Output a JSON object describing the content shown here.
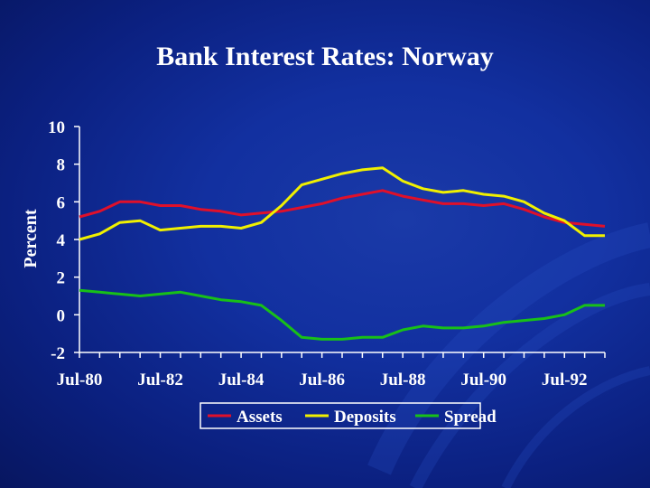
{
  "slide": {
    "title": "Bank Interest Rates: Norway"
  },
  "chart_data": {
    "type": "line",
    "title": "",
    "xlabel": "",
    "ylabel": "Percent",
    "ylim": [
      -2,
      10
    ],
    "yticks": [
      "10",
      "8",
      "6",
      "4",
      "2",
      "0",
      "-2"
    ],
    "xtick_labels": [
      "Jul-80",
      "Jul-82",
      "Jul-84",
      "Jul-86",
      "Jul-88",
      "Jul-90",
      "Jul-92"
    ],
    "grid": false,
    "legend_position": "bottom",
    "x": [
      1980.5,
      1981.0,
      1981.5,
      1982.0,
      1982.5,
      1983.0,
      1983.5,
      1984.0,
      1984.5,
      1985.0,
      1985.5,
      1986.0,
      1986.5,
      1987.0,
      1987.5,
      1988.0,
      1988.5,
      1989.0,
      1989.5,
      1990.0,
      1990.5,
      1991.0,
      1991.5,
      1992.0,
      1992.5,
      1993.0,
      1993.5
    ],
    "series": [
      {
        "name": "Assets",
        "color": "#e0102a",
        "values": [
          5.2,
          5.5,
          6.0,
          6.0,
          5.8,
          5.8,
          5.6,
          5.5,
          5.3,
          5.4,
          5.5,
          5.7,
          5.9,
          6.2,
          6.4,
          6.6,
          6.3,
          6.1,
          5.9,
          5.9,
          5.8,
          5.9,
          5.6,
          5.2,
          4.9,
          4.8,
          4.7
        ]
      },
      {
        "name": "Deposits",
        "color": "#f0f000",
        "values": [
          4.0,
          4.3,
          4.9,
          5.0,
          4.5,
          4.6,
          4.7,
          4.7,
          4.6,
          4.9,
          5.8,
          6.9,
          7.2,
          7.5,
          7.7,
          7.8,
          7.1,
          6.7,
          6.5,
          6.6,
          6.4,
          6.3,
          6.0,
          5.4,
          5.0,
          4.2,
          4.2
        ]
      },
      {
        "name": "Spread",
        "color": "#18c018",
        "values": [
          1.3,
          1.2,
          1.1,
          1.0,
          1.1,
          1.2,
          1.0,
          0.8,
          0.7,
          0.5,
          -0.3,
          -1.2,
          -1.3,
          -1.3,
          -1.2,
          -1.2,
          -0.8,
          -0.6,
          -0.7,
          -0.7,
          -0.6,
          -0.4,
          -0.3,
          -0.2,
          0.0,
          0.5,
          0.5
        ]
      }
    ]
  }
}
